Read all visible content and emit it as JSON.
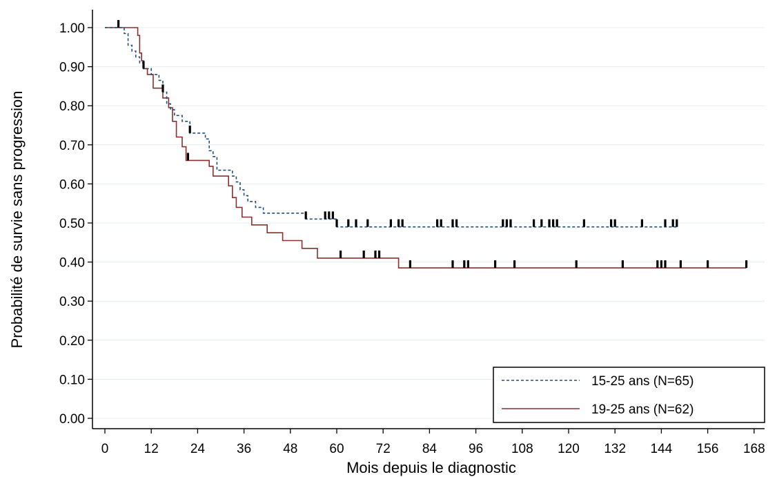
{
  "chart_data": {
    "type": "line",
    "subtype": "kaplan-meier-step",
    "title": "",
    "xlabel": "Mois depuis le diagnostic",
    "ylabel": "Probabilité de survie sans progression",
    "xlim": [
      0,
      170
    ],
    "ylim": [
      0,
      1.02
    ],
    "x_ticks": [
      0,
      12,
      24,
      36,
      48,
      60,
      72,
      84,
      96,
      108,
      120,
      132,
      144,
      156,
      168
    ],
    "y_ticks": [
      {
        "value": 0.0,
        "label": "0.00"
      },
      {
        "value": 0.1,
        "label": "0.10"
      },
      {
        "value": 0.2,
        "label": "0.20"
      },
      {
        "value": 0.3,
        "label": "0.30"
      },
      {
        "value": 0.4,
        "label": "0.40"
      },
      {
        "value": 0.5,
        "label": "0.50"
      },
      {
        "value": 0.6,
        "label": "0.60"
      },
      {
        "value": 0.7,
        "label": "0.70"
      },
      {
        "value": 0.8,
        "label": "0.80"
      },
      {
        "value": 0.9,
        "label": "0.90"
      },
      {
        "value": 1.0,
        "label": "1.00"
      }
    ],
    "grid": "horizontal",
    "legend_position": "bottom-right",
    "series": [
      {
        "name": "15-25 ans (N=65)",
        "color": "#1f4e79",
        "line_style": "dashed",
        "steps": [
          [
            0,
            1.0
          ],
          [
            5,
            0.985
          ],
          [
            6,
            0.955
          ],
          [
            7,
            0.94
          ],
          [
            8,
            0.925
          ],
          [
            9,
            0.91
          ],
          [
            10,
            0.895
          ],
          [
            12,
            0.88
          ],
          [
            14,
            0.865
          ],
          [
            15,
            0.835
          ],
          [
            16,
            0.805
          ],
          [
            17,
            0.79
          ],
          [
            18,
            0.775
          ],
          [
            20,
            0.76
          ],
          [
            22,
            0.73
          ],
          [
            26,
            0.715
          ],
          [
            27,
            0.685
          ],
          [
            28,
            0.67
          ],
          [
            29,
            0.635
          ],
          [
            33,
            0.62
          ],
          [
            34,
            0.605
          ],
          [
            35,
            0.585
          ],
          [
            36,
            0.57
          ],
          [
            37,
            0.555
          ],
          [
            39,
            0.54
          ],
          [
            41,
            0.525
          ],
          [
            52,
            0.51
          ],
          [
            60,
            0.49
          ],
          [
            148,
            0.49
          ]
        ],
        "censors": [
          3.5,
          10,
          15,
          22,
          52,
          57,
          58,
          59,
          60,
          63,
          65,
          68,
          74,
          76,
          77,
          86,
          87,
          90,
          91,
          103,
          104,
          105,
          111,
          113,
          115,
          116,
          117,
          124,
          131,
          132,
          139,
          145,
          147,
          148
        ]
      },
      {
        "name": "19-25 ans (N=62)",
        "color": "#8b2e2e",
        "line_style": "solid",
        "steps": [
          [
            0,
            1.0
          ],
          [
            8.5,
            0.98
          ],
          [
            9,
            0.935
          ],
          [
            9.5,
            0.915
          ],
          [
            10,
            0.895
          ],
          [
            11,
            0.88
          ],
          [
            12.5,
            0.845
          ],
          [
            15,
            0.82
          ],
          [
            16.5,
            0.795
          ],
          [
            17.5,
            0.76
          ],
          [
            18.5,
            0.72
          ],
          [
            20,
            0.695
          ],
          [
            21,
            0.66
          ],
          [
            27,
            0.645
          ],
          [
            28,
            0.62
          ],
          [
            32,
            0.595
          ],
          [
            33,
            0.565
          ],
          [
            34,
            0.54
          ],
          [
            35.5,
            0.515
          ],
          [
            38,
            0.495
          ],
          [
            42,
            0.475
          ],
          [
            46,
            0.455
          ],
          [
            51,
            0.435
          ],
          [
            55,
            0.41
          ],
          [
            76,
            0.385
          ],
          [
            166,
            0.385
          ]
        ],
        "censors": [
          21.5,
          61,
          67,
          70,
          71,
          79,
          90,
          93,
          94,
          101,
          106,
          122,
          134,
          143,
          144,
          145,
          149,
          156,
          166
        ]
      }
    ]
  }
}
